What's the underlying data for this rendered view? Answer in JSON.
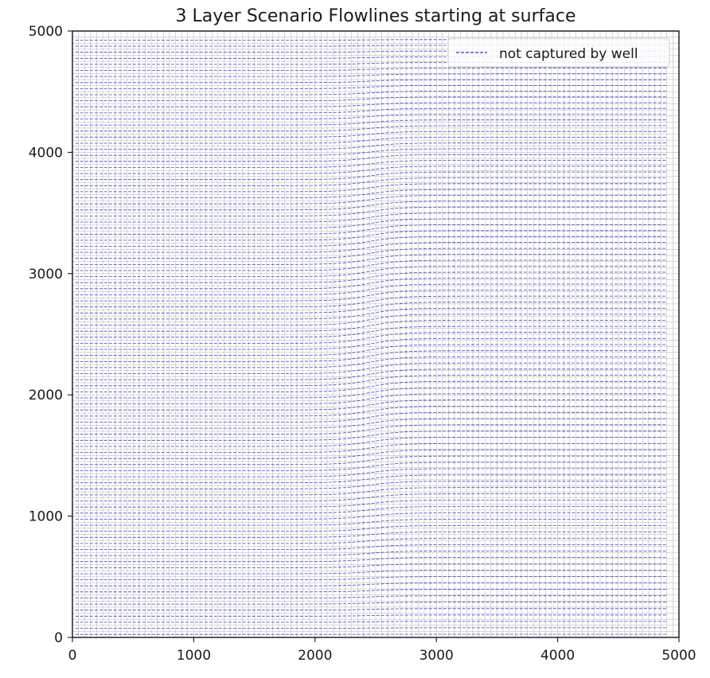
{
  "chart_data": {
    "type": "line",
    "title": "3 Layer Scenario Flowlines starting at surface",
    "xlabel": "",
    "ylabel": "",
    "xlim": [
      0,
      5000
    ],
    "ylim": [
      0,
      5000
    ],
    "xticks": [
      0,
      1000,
      2000,
      3000,
      4000,
      5000
    ],
    "yticks": [
      0,
      1000,
      2000,
      3000,
      4000,
      5000
    ],
    "grid": {
      "spacing": 50,
      "color": "#b0b0b0"
    },
    "series": [
      {
        "name": "not captured by well",
        "color": "#0000cc",
        "line_style": "dashed",
        "flow_direction": "left-to-right",
        "x_start": 25,
        "x_end": 4900,
        "flowline_count": 99,
        "first_start_y": 25,
        "start_y_spacing": 50,
        "deflection_center_x": 2450,
        "deflection_width_x": 500,
        "max_deflection_y": 90
      }
    ],
    "legend": {
      "location": "top-right",
      "entries": [
        "not captured by well"
      ]
    }
  }
}
